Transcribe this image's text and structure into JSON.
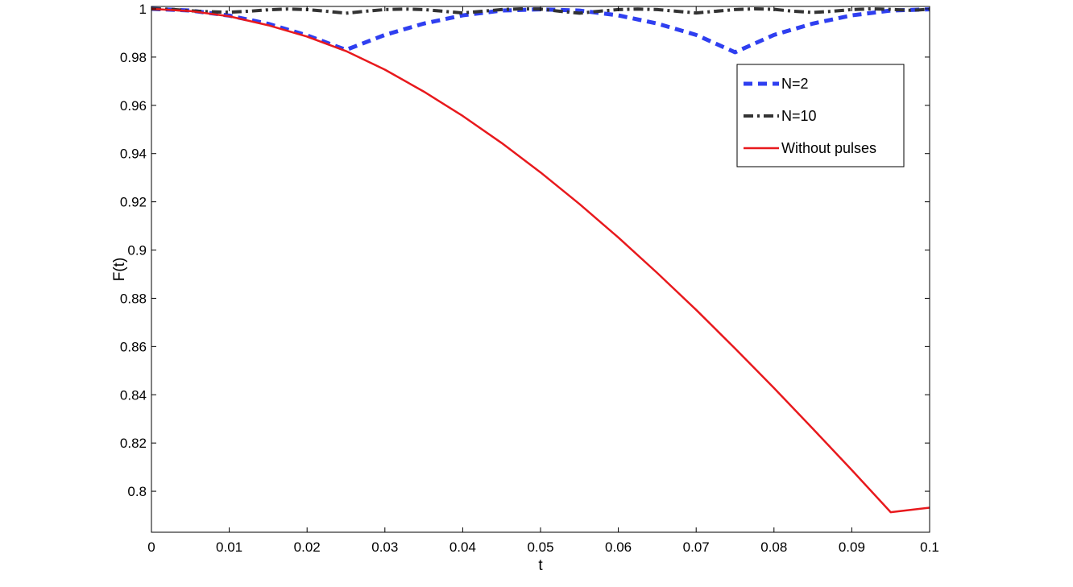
{
  "chart_data": {
    "type": "line",
    "xlabel": "t",
    "ylabel": "F(t)",
    "xlim": [
      0,
      0.1
    ],
    "ylim": [
      0.783,
      1.001
    ],
    "xticks": [
      "0",
      "0.01",
      "0.02",
      "0.03",
      "0.04",
      "0.05",
      "0.06",
      "0.07",
      "0.08",
      "0.09",
      "0.1"
    ],
    "yticks": [
      "0.8",
      "0.82",
      "0.84",
      "0.86",
      "0.88",
      "0.9",
      "0.92",
      "0.94",
      "0.96",
      "0.98",
      "1"
    ],
    "grid": false,
    "legend_position": "top-right",
    "series": [
      {
        "name": "N=2",
        "color": "#2f3ff0",
        "style": "dashed",
        "x": [
          0,
          0.005,
          0.01,
          0.015,
          0.02,
          0.025,
          0.03,
          0.035,
          0.04,
          0.045,
          0.05,
          0.055,
          0.06,
          0.065,
          0.07,
          0.075,
          0.08,
          0.085,
          0.09,
          0.095,
          0.1
        ],
        "y": [
          1.0,
          0.9993,
          0.9972,
          0.9938,
          0.989,
          0.983,
          0.9892,
          0.9939,
          0.9973,
          0.9993,
          0.9998,
          0.9993,
          0.9973,
          0.9939,
          0.9892,
          0.982,
          0.9892,
          0.9939,
          0.9973,
          0.9993,
          0.9998
        ]
      },
      {
        "name": "N=10",
        "color": "#333333",
        "style": "dashdot",
        "x": [
          0,
          0.0025,
          0.005,
          0.0075,
          0.01,
          0.0125,
          0.015,
          0.0175,
          0.02,
          0.0225,
          0.025,
          0.0275,
          0.03,
          0.0325,
          0.035,
          0.0375,
          0.04,
          0.0425,
          0.045,
          0.0475,
          0.05,
          0.0525,
          0.055,
          0.0575,
          0.06,
          0.0625,
          0.065,
          0.0675,
          0.07,
          0.0725,
          0.075,
          0.0775,
          0.08,
          0.0825,
          0.085,
          0.0875,
          0.09,
          0.0925,
          0.095,
          0.0975,
          0.1
        ],
        "y": [
          1.0,
          0.9998,
          0.9992,
          0.9988,
          0.9986,
          0.999,
          0.9996,
          0.9999,
          0.9997,
          0.999,
          0.9982,
          0.999,
          0.9997,
          0.9999,
          0.9997,
          0.999,
          0.9983,
          0.999,
          0.9997,
          1.0,
          0.9999,
          0.999,
          0.9982,
          0.999,
          0.9997,
          0.9999,
          0.9997,
          0.999,
          0.9983,
          0.999,
          0.9997,
          1.0,
          0.9998,
          0.999,
          0.9985,
          0.999,
          0.9997,
          1.0,
          0.9998,
          0.9994,
          0.9998
        ]
      },
      {
        "name": "Without pulses",
        "color": "#e8191d",
        "style": "solid",
        "x": [
          0,
          0.005,
          0.01,
          0.015,
          0.02,
          0.025,
          0.03,
          0.035,
          0.04,
          0.045,
          0.05,
          0.055,
          0.06,
          0.065,
          0.07,
          0.075,
          0.08,
          0.085,
          0.09,
          0.095,
          0.1
        ],
        "y": [
          1.0,
          0.9991,
          0.9969,
          0.9932,
          0.9885,
          0.9825,
          0.9748,
          0.9657,
          0.9556,
          0.9444,
          0.9322,
          0.9191,
          0.9052,
          0.8905,
          0.8752,
          0.8592,
          0.8428,
          0.8259,
          0.8088,
          0.7913,
          0.7932
        ]
      }
    ]
  }
}
